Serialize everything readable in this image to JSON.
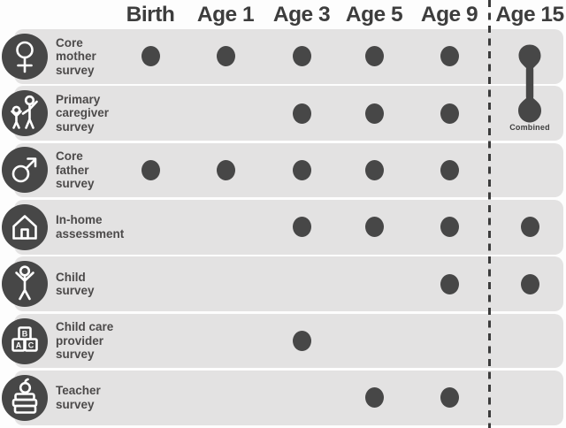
{
  "colors": {
    "dot": "#474747",
    "icon_circle_bg": "#474747",
    "icon_stroke": "#ffffff",
    "row_band_bg": "#e3e2e2",
    "header_text": "#3d3d3d",
    "row_label_text": "#4c4a4a",
    "divider": "#3b3b3b",
    "page_bg": "#fdfdfd"
  },
  "chart_data": {
    "type": "table",
    "title": "",
    "columns": [
      "Birth",
      "Age 1",
      "Age 3",
      "Age 5",
      "Age 9",
      "Age 15"
    ],
    "rows": [
      {
        "label": "Core mother survey",
        "label_lines": [
          "Core",
          "mother",
          "survey"
        ],
        "icon": "female-symbol-icon",
        "cells": [
          1,
          1,
          1,
          1,
          1,
          1
        ],
        "age15_combined": true
      },
      {
        "label": "Primary caregiver survey",
        "label_lines": [
          "Primary",
          "caregiver",
          "survey"
        ],
        "icon": "caregiver-icon",
        "cells": [
          0,
          0,
          1,
          1,
          1,
          1
        ],
        "age15_combined": true
      },
      {
        "label": "Core father survey",
        "label_lines": [
          "Core",
          "father",
          "survey"
        ],
        "icon": "male-symbol-icon",
        "cells": [
          1,
          1,
          1,
          1,
          1,
          0
        ],
        "age15_combined": false
      },
      {
        "label": "In-home assessment",
        "label_lines": [
          "In-home",
          "assessment"
        ],
        "icon": "house-icon",
        "cells": [
          0,
          0,
          1,
          1,
          1,
          1
        ],
        "age15_combined": false
      },
      {
        "label": "Child survey",
        "label_lines": [
          "Child",
          "survey"
        ],
        "icon": "child-icon",
        "cells": [
          0,
          0,
          0,
          0,
          1,
          1
        ],
        "age15_combined": false
      },
      {
        "label": "Child care provider survey",
        "label_lines": [
          "Child care",
          "provider",
          "survey"
        ],
        "icon": "blocks-icon",
        "cells": [
          0,
          0,
          1,
          0,
          0,
          0
        ],
        "age15_combined": false
      },
      {
        "label": "Teacher survey",
        "label_lines": [
          "Teacher",
          "survey"
        ],
        "icon": "books-apple-icon",
        "cells": [
          0,
          0,
          0,
          1,
          1,
          0
        ],
        "age15_combined": false
      }
    ],
    "combined_annotation": {
      "label": "Combined",
      "column": "Age 15",
      "connects_rows": [
        "Core mother survey",
        "Primary caregiver survey"
      ]
    },
    "divider": {
      "style": "dashed-vertical-line",
      "position": "before Age 15 column"
    },
    "legend_position": "none",
    "grid": false
  }
}
